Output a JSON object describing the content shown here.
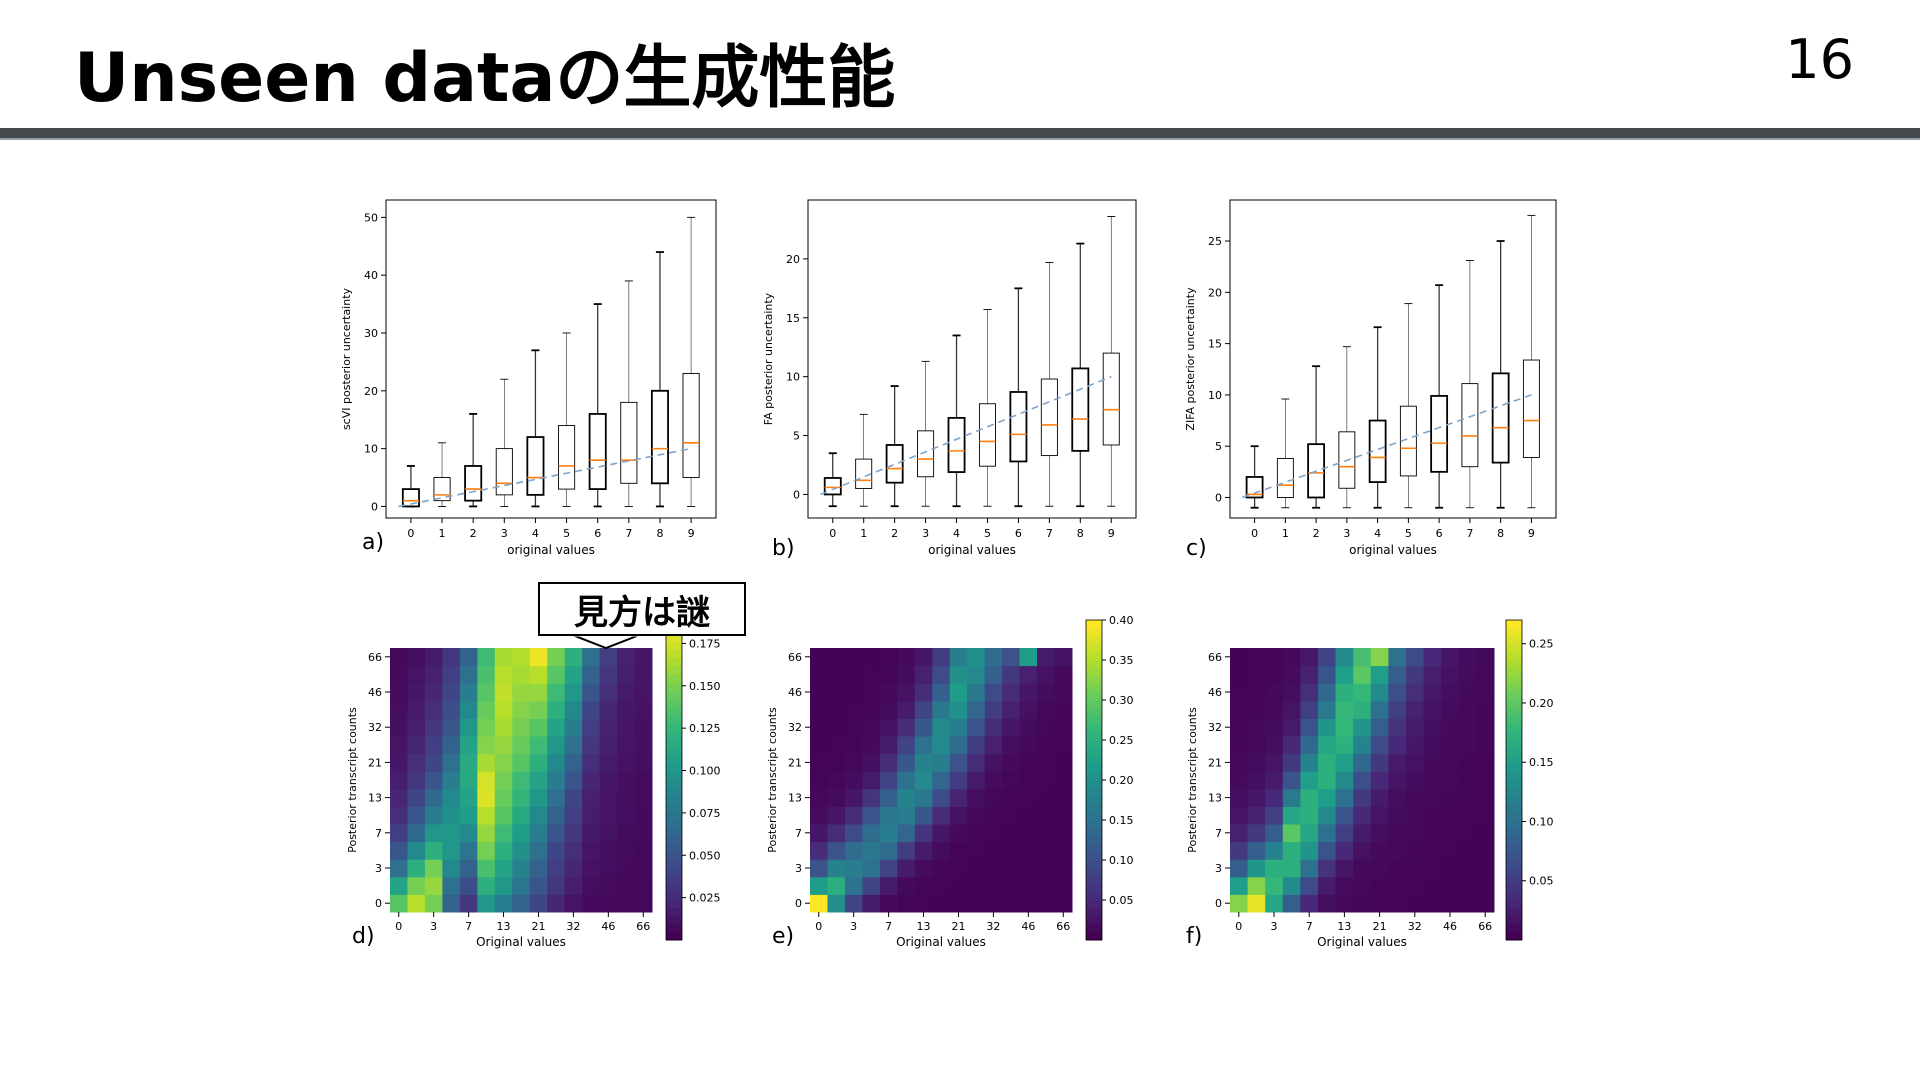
{
  "slide": {
    "title": "Unseen dataの生成性能",
    "page_number": "16",
    "callout": "見方は謎"
  },
  "panel_labels": [
    "a)",
    "b)",
    "c)",
    "d)",
    "e)",
    "f)"
  ],
  "chart_data": [
    {
      "panel": "a)",
      "type": "box",
      "xlabel": "original values",
      "ylabel": "scVI posterior uncertainty",
      "categories": [
        "0",
        "1",
        "2",
        "3",
        "4",
        "5",
        "6",
        "7",
        "8",
        "9"
      ],
      "ylim": [
        -2,
        53
      ],
      "yticks": [
        0,
        10,
        20,
        30,
        40,
        50
      ],
      "boxes": [
        {
          "min": 0,
          "q1": 0,
          "median": 1,
          "q3": 3,
          "max": 7
        },
        {
          "min": 0,
          "q1": 1,
          "median": 2,
          "q3": 5,
          "max": 11
        },
        {
          "min": 0,
          "q1": 1,
          "median": 3,
          "q3": 7,
          "max": 16
        },
        {
          "min": 0,
          "q1": 2,
          "median": 4,
          "q3": 10,
          "max": 22
        },
        {
          "min": 0,
          "q1": 2,
          "median": 5,
          "q3": 12,
          "max": 27
        },
        {
          "min": 0,
          "q1": 3,
          "median": 7,
          "q3": 14,
          "max": 30
        },
        {
          "min": 0,
          "q1": 3,
          "median": 8,
          "q3": 16,
          "max": 35
        },
        {
          "min": 0,
          "q1": 4,
          "median": 8,
          "q3": 18,
          "max": 39
        },
        {
          "min": 0,
          "q1": 4,
          "median": 10,
          "q3": 20,
          "max": 44
        },
        {
          "min": 0,
          "q1": 5,
          "median": 11,
          "q3": 23,
          "max": 50
        }
      ],
      "reference_line": [
        0,
        10
      ]
    },
    {
      "panel": "b)",
      "type": "box",
      "xlabel": "original values",
      "ylabel": "FA posterior uncertainty",
      "categories": [
        "0",
        "1",
        "2",
        "3",
        "4",
        "5",
        "6",
        "7",
        "8",
        "9"
      ],
      "ylim": [
        -2,
        25
      ],
      "yticks": [
        0,
        5,
        10,
        15,
        20
      ],
      "boxes": [
        {
          "min": -1,
          "q1": 0,
          "median": 0.6,
          "q3": 1.4,
          "max": 3.5
        },
        {
          "min": -1,
          "q1": 0.5,
          "median": 1.2,
          "q3": 3,
          "max": 6.8
        },
        {
          "min": -1,
          "q1": 1,
          "median": 2.2,
          "q3": 4.2,
          "max": 9.2
        },
        {
          "min": -1,
          "q1": 1.5,
          "median": 3,
          "q3": 5.4,
          "max": 11.3
        },
        {
          "min": -1,
          "q1": 1.9,
          "median": 3.7,
          "q3": 6.5,
          "max": 13.5
        },
        {
          "min": -1,
          "q1": 2.4,
          "median": 4.5,
          "q3": 7.7,
          "max": 15.7
        },
        {
          "min": -1,
          "q1": 2.8,
          "median": 5.1,
          "q3": 8.7,
          "max": 17.5
        },
        {
          "min": -1,
          "q1": 3.3,
          "median": 5.9,
          "q3": 9.8,
          "max": 19.7
        },
        {
          "min": -1,
          "q1": 3.7,
          "median": 6.4,
          "q3": 10.7,
          "max": 21.3
        },
        {
          "min": -1,
          "q1": 4.2,
          "median": 7.2,
          "q3": 12,
          "max": 23.6
        }
      ],
      "reference_line": [
        0,
        10
      ]
    },
    {
      "panel": "c)",
      "type": "box",
      "xlabel": "original values",
      "ylabel": "ZIFA posterior uncertainty",
      "categories": [
        "0",
        "1",
        "2",
        "3",
        "4",
        "5",
        "6",
        "7",
        "8",
        "9"
      ],
      "ylim": [
        -2,
        29
      ],
      "yticks": [
        0,
        5,
        10,
        15,
        20,
        25
      ],
      "boxes": [
        {
          "min": -1,
          "q1": 0,
          "median": 0.3,
          "q3": 2,
          "max": 5
        },
        {
          "min": -1,
          "q1": 0,
          "median": 1.2,
          "q3": 3.8,
          "max": 9.6
        },
        {
          "min": -1,
          "q1": 0,
          "median": 2.4,
          "q3": 5.2,
          "max": 12.8
        },
        {
          "min": -1,
          "q1": 0.9,
          "median": 3,
          "q3": 6.4,
          "max": 14.7
        },
        {
          "min": -1,
          "q1": 1.5,
          "median": 3.9,
          "q3": 7.5,
          "max": 16.6
        },
        {
          "min": -1,
          "q1": 2.1,
          "median": 4.8,
          "q3": 8.9,
          "max": 18.9
        },
        {
          "min": -1,
          "q1": 2.5,
          "median": 5.3,
          "q3": 9.9,
          "max": 20.7
        },
        {
          "min": -1,
          "q1": 3,
          "median": 6,
          "q3": 11.1,
          "max": 23.1
        },
        {
          "min": -1,
          "q1": 3.4,
          "median": 6.8,
          "q3": 12.1,
          "max": 25
        },
        {
          "min": -1,
          "q1": 3.9,
          "median": 7.5,
          "q3": 13.4,
          "max": 27.5
        }
      ],
      "reference_line": [
        0,
        10
      ]
    },
    {
      "panel": "d)",
      "type": "heatmap",
      "xlabel": "Original values",
      "ylabel": "Posterior transcript counts",
      "xticks": [
        "0",
        "3",
        "7",
        "13",
        "21",
        "32",
        "46",
        "66"
      ],
      "yticks": [
        "0",
        "3",
        "7",
        "13",
        "21",
        "32",
        "46",
        "66"
      ],
      "colorbar_ticks": [
        "0.025",
        "0.050",
        "0.075",
        "0.100",
        "0.125",
        "0.150",
        "0.175"
      ],
      "vmax": 0.19,
      "grid": [
        [
          0.14,
          0.17,
          0.15,
          0.06,
          0.03,
          0.1,
          0.08,
          0.06,
          0.04,
          0.02,
          0.01,
          0.005,
          0.005,
          0.003,
          0.003
        ],
        [
          0.11,
          0.15,
          0.16,
          0.07,
          0.045,
          0.12,
          0.1,
          0.075,
          0.05,
          0.03,
          0.015,
          0.007,
          0.006,
          0.004,
          0.003
        ],
        [
          0.07,
          0.12,
          0.15,
          0.09,
          0.06,
          0.135,
          0.11,
          0.085,
          0.06,
          0.035,
          0.02,
          0.009,
          0.007,
          0.005,
          0.004
        ],
        [
          0.05,
          0.09,
          0.12,
          0.1,
          0.075,
          0.15,
          0.12,
          0.095,
          0.07,
          0.04,
          0.025,
          0.011,
          0.008,
          0.006,
          0.004
        ],
        [
          0.035,
          0.065,
          0.1,
          0.1,
          0.09,
          0.16,
          0.13,
          0.105,
          0.08,
          0.05,
          0.03,
          0.013,
          0.009,
          0.006,
          0.005
        ],
        [
          0.025,
          0.05,
          0.08,
          0.095,
          0.105,
          0.17,
          0.14,
          0.115,
          0.09,
          0.06,
          0.035,
          0.015,
          0.01,
          0.007,
          0.005
        ],
        [
          0.02,
          0.04,
          0.065,
          0.09,
          0.11,
          0.18,
          0.145,
          0.125,
          0.1,
          0.07,
          0.04,
          0.017,
          0.011,
          0.008,
          0.006
        ],
        [
          0.015,
          0.03,
          0.05,
          0.08,
          0.115,
          0.178,
          0.15,
          0.13,
          0.11,
          0.08,
          0.05,
          0.02,
          0.012,
          0.008,
          0.006
        ],
        [
          0.012,
          0.025,
          0.04,
          0.07,
          0.115,
          0.165,
          0.155,
          0.14,
          0.12,
          0.09,
          0.06,
          0.025,
          0.014,
          0.009,
          0.007
        ],
        [
          0.01,
          0.02,
          0.035,
          0.06,
          0.11,
          0.155,
          0.16,
          0.145,
          0.13,
          0.1,
          0.07,
          0.03,
          0.016,
          0.01,
          0.008
        ],
        [
          0.008,
          0.016,
          0.03,
          0.05,
          0.1,
          0.15,
          0.165,
          0.15,
          0.14,
          0.11,
          0.08,
          0.035,
          0.018,
          0.011,
          0.008
        ],
        [
          0.007,
          0.014,
          0.025,
          0.045,
          0.09,
          0.145,
          0.17,
          0.155,
          0.15,
          0.12,
          0.09,
          0.04,
          0.02,
          0.012,
          0.009
        ],
        [
          0.006,
          0.012,
          0.02,
          0.04,
          0.08,
          0.14,
          0.172,
          0.16,
          0.16,
          0.13,
          0.1,
          0.05,
          0.025,
          0.014,
          0.01
        ],
        [
          0.005,
          0.01,
          0.017,
          0.035,
          0.07,
          0.135,
          0.17,
          0.165,
          0.17,
          0.14,
          0.11,
          0.06,
          0.03,
          0.016,
          0.011
        ],
        [
          0.004,
          0.008,
          0.014,
          0.03,
          0.06,
          0.13,
          0.165,
          0.168,
          0.185,
          0.15,
          0.12,
          0.07,
          0.035,
          0.018,
          0.012
        ]
      ]
    },
    {
      "panel": "e)",
      "type": "heatmap",
      "xlabel": "Original values",
      "ylabel": "Posterior transcript counts",
      "xticks": [
        "0",
        "3",
        "7",
        "13",
        "21",
        "32",
        "46",
        "66"
      ],
      "yticks": [
        "0",
        "3",
        "7",
        "13",
        "21",
        "32",
        "46",
        "66"
      ],
      "colorbar_ticks": [
        "0.05",
        "0.10",
        "0.15",
        "0.20",
        "0.25",
        "0.30",
        "0.35",
        "0.40"
      ],
      "vmax": 0.4,
      "grid": [
        [
          0.4,
          0.2,
          0.08,
          0.03,
          0.01,
          0.005,
          0.004,
          0.003,
          0.003,
          0.002,
          0.002,
          0.002,
          0.002,
          0.002,
          0.002
        ],
        [
          0.22,
          0.25,
          0.15,
          0.08,
          0.03,
          0.01,
          0.006,
          0.004,
          0.003,
          0.003,
          0.002,
          0.002,
          0.002,
          0.002,
          0.002
        ],
        [
          0.1,
          0.18,
          0.17,
          0.15,
          0.08,
          0.03,
          0.012,
          0.006,
          0.004,
          0.003,
          0.003,
          0.002,
          0.002,
          0.002,
          0.002
        ],
        [
          0.05,
          0.1,
          0.14,
          0.16,
          0.14,
          0.07,
          0.03,
          0.012,
          0.006,
          0.004,
          0.003,
          0.003,
          0.002,
          0.002,
          0.002
        ],
        [
          0.025,
          0.05,
          0.09,
          0.14,
          0.17,
          0.13,
          0.06,
          0.025,
          0.01,
          0.005,
          0.004,
          0.003,
          0.003,
          0.002,
          0.002
        ],
        [
          0.012,
          0.025,
          0.05,
          0.1,
          0.16,
          0.17,
          0.11,
          0.05,
          0.02,
          0.008,
          0.005,
          0.004,
          0.003,
          0.003,
          0.002
        ],
        [
          0.007,
          0.012,
          0.025,
          0.06,
          0.12,
          0.18,
          0.16,
          0.09,
          0.04,
          0.015,
          0.007,
          0.005,
          0.004,
          0.003,
          0.003
        ],
        [
          0.005,
          0.007,
          0.013,
          0.03,
          0.08,
          0.15,
          0.19,
          0.13,
          0.07,
          0.03,
          0.012,
          0.007,
          0.005,
          0.004,
          0.003
        ],
        [
          0.004,
          0.005,
          0.008,
          0.017,
          0.05,
          0.11,
          0.18,
          0.17,
          0.1,
          0.05,
          0.02,
          0.01,
          0.006,
          0.004,
          0.003
        ],
        [
          0.003,
          0.004,
          0.006,
          0.01,
          0.03,
          0.08,
          0.15,
          0.19,
          0.14,
          0.07,
          0.035,
          0.015,
          0.008,
          0.005,
          0.004
        ],
        [
          0.003,
          0.003,
          0.004,
          0.007,
          0.018,
          0.05,
          0.11,
          0.19,
          0.17,
          0.1,
          0.05,
          0.025,
          0.012,
          0.007,
          0.005
        ],
        [
          0.002,
          0.003,
          0.004,
          0.005,
          0.012,
          0.03,
          0.08,
          0.16,
          0.2,
          0.13,
          0.07,
          0.035,
          0.018,
          0.009,
          0.006
        ],
        [
          0.002,
          0.002,
          0.003,
          0.004,
          0.008,
          0.02,
          0.05,
          0.12,
          0.22,
          0.16,
          0.09,
          0.05,
          0.025,
          0.013,
          0.008
        ],
        [
          0.002,
          0.002,
          0.003,
          0.004,
          0.006,
          0.014,
          0.035,
          0.09,
          0.2,
          0.19,
          0.12,
          0.065,
          0.035,
          0.018,
          0.01
        ],
        [
          0.002,
          0.002,
          0.002,
          0.003,
          0.005,
          0.01,
          0.025,
          0.07,
          0.17,
          0.2,
          0.14,
          0.1,
          0.22,
          0.03,
          0.02
        ]
      ]
    },
    {
      "panel": "f)",
      "type": "heatmap",
      "xlabel": "Original values",
      "ylabel": "Posterior transcript counts",
      "xticks": [
        "0",
        "3",
        "7",
        "13",
        "21",
        "32",
        "46",
        "66"
      ],
      "yticks": [
        "0",
        "3",
        "7",
        "13",
        "21",
        "32",
        "46",
        "66"
      ],
      "colorbar_ticks": [
        "0.05",
        "0.10",
        "0.15",
        "0.20",
        "0.25"
      ],
      "vmax": 0.27,
      "grid": [
        [
          0.22,
          0.26,
          0.16,
          0.08,
          0.03,
          0.01,
          0.005,
          0.004,
          0.003,
          0.003,
          0.002,
          0.002,
          0.002,
          0.002,
          0.002
        ],
        [
          0.15,
          0.22,
          0.18,
          0.13,
          0.06,
          0.02,
          0.008,
          0.005,
          0.004,
          0.003,
          0.003,
          0.002,
          0.002,
          0.002,
          0.002
        ],
        [
          0.08,
          0.14,
          0.17,
          0.17,
          0.1,
          0.04,
          0.015,
          0.007,
          0.005,
          0.004,
          0.003,
          0.003,
          0.002,
          0.002,
          0.002
        ],
        [
          0.045,
          0.08,
          0.12,
          0.17,
          0.14,
          0.07,
          0.03,
          0.012,
          0.007,
          0.005,
          0.004,
          0.003,
          0.003,
          0.002,
          0.002
        ],
        [
          0.025,
          0.045,
          0.08,
          0.2,
          0.16,
          0.1,
          0.05,
          0.02,
          0.01,
          0.006,
          0.005,
          0.004,
          0.003,
          0.003,
          0.002
        ],
        [
          0.015,
          0.025,
          0.05,
          0.16,
          0.17,
          0.13,
          0.07,
          0.03,
          0.014,
          0.008,
          0.006,
          0.004,
          0.003,
          0.003,
          0.003
        ],
        [
          0.01,
          0.016,
          0.03,
          0.11,
          0.17,
          0.15,
          0.1,
          0.045,
          0.02,
          0.01,
          0.007,
          0.005,
          0.004,
          0.003,
          0.003
        ],
        [
          0.007,
          0.011,
          0.02,
          0.07,
          0.15,
          0.17,
          0.13,
          0.065,
          0.03,
          0.015,
          0.009,
          0.006,
          0.005,
          0.004,
          0.003
        ],
        [
          0.005,
          0.008,
          0.014,
          0.045,
          0.12,
          0.17,
          0.15,
          0.09,
          0.045,
          0.02,
          0.012,
          0.007,
          0.005,
          0.004,
          0.003
        ],
        [
          0.004,
          0.006,
          0.01,
          0.03,
          0.09,
          0.16,
          0.17,
          0.12,
          0.06,
          0.03,
          0.016,
          0.009,
          0.006,
          0.005,
          0.004
        ],
        [
          0.003,
          0.005,
          0.008,
          0.02,
          0.07,
          0.14,
          0.18,
          0.14,
          0.08,
          0.04,
          0.02,
          0.011,
          0.007,
          0.005,
          0.004
        ],
        [
          0.003,
          0.004,
          0.006,
          0.014,
          0.05,
          0.11,
          0.18,
          0.17,
          0.1,
          0.05,
          0.025,
          0.013,
          0.008,
          0.006,
          0.004
        ],
        [
          0.003,
          0.003,
          0.005,
          0.01,
          0.035,
          0.09,
          0.17,
          0.18,
          0.13,
          0.065,
          0.035,
          0.018,
          0.01,
          0.007,
          0.005
        ],
        [
          0.002,
          0.003,
          0.004,
          0.008,
          0.025,
          0.07,
          0.15,
          0.2,
          0.15,
          0.08,
          0.045,
          0.022,
          0.012,
          0.008,
          0.005
        ],
        [
          0.002,
          0.003,
          0.004,
          0.006,
          0.018,
          0.055,
          0.13,
          0.19,
          0.22,
          0.1,
          0.06,
          0.03,
          0.015,
          0.009,
          0.006
        ]
      ]
    }
  ],
  "colors": {
    "median": "#ff7f0e",
    "reference_line": "#7fa3c9",
    "rule": "#44494e"
  }
}
